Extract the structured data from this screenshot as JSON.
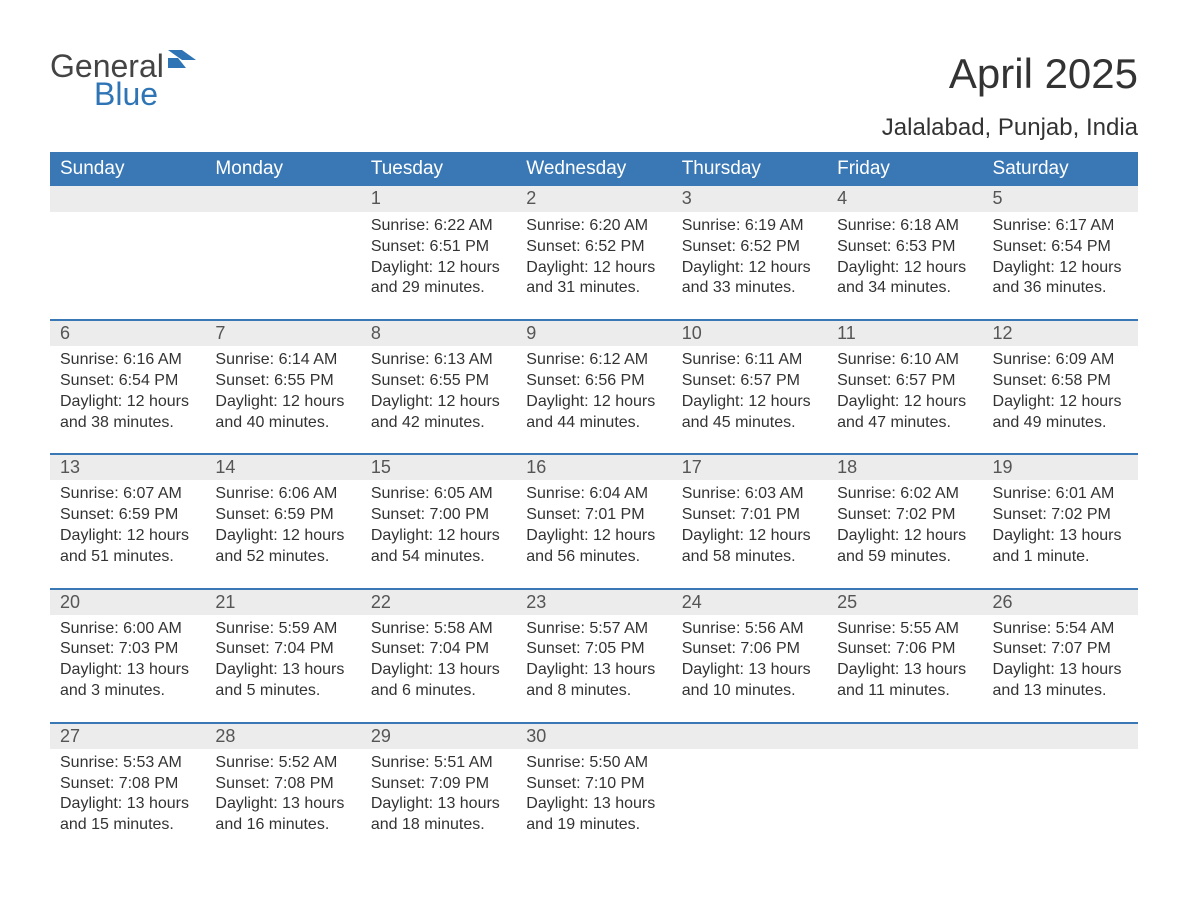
{
  "logo": {
    "word1": "General",
    "word2": "Blue",
    "color1": "#444444",
    "color2": "#2f75b5",
    "icon_color": "#2f75b5"
  },
  "title": "April 2025",
  "location": "Jalalabad, Punjab, India",
  "header_bg": "#3a78b5",
  "daynum_bg": "#ececec",
  "border_color": "#3a78b5",
  "weekdays": [
    "Sunday",
    "Monday",
    "Tuesday",
    "Wednesday",
    "Thursday",
    "Friday",
    "Saturday"
  ],
  "weeks": [
    {
      "days": [
        {
          "n": ""
        },
        {
          "n": ""
        },
        {
          "n": "1",
          "sr": "Sunrise: 6:22 AM",
          "ss": "Sunset: 6:51 PM",
          "d1": "Daylight: 12 hours",
          "d2": "and 29 minutes."
        },
        {
          "n": "2",
          "sr": "Sunrise: 6:20 AM",
          "ss": "Sunset: 6:52 PM",
          "d1": "Daylight: 12 hours",
          "d2": "and 31 minutes."
        },
        {
          "n": "3",
          "sr": "Sunrise: 6:19 AM",
          "ss": "Sunset: 6:52 PM",
          "d1": "Daylight: 12 hours",
          "d2": "and 33 minutes."
        },
        {
          "n": "4",
          "sr": "Sunrise: 6:18 AM",
          "ss": "Sunset: 6:53 PM",
          "d1": "Daylight: 12 hours",
          "d2": "and 34 minutes."
        },
        {
          "n": "5",
          "sr": "Sunrise: 6:17 AM",
          "ss": "Sunset: 6:54 PM",
          "d1": "Daylight: 12 hours",
          "d2": "and 36 minutes."
        }
      ]
    },
    {
      "days": [
        {
          "n": "6",
          "sr": "Sunrise: 6:16 AM",
          "ss": "Sunset: 6:54 PM",
          "d1": "Daylight: 12 hours",
          "d2": "and 38 minutes."
        },
        {
          "n": "7",
          "sr": "Sunrise: 6:14 AM",
          "ss": "Sunset: 6:55 PM",
          "d1": "Daylight: 12 hours",
          "d2": "and 40 minutes."
        },
        {
          "n": "8",
          "sr": "Sunrise: 6:13 AM",
          "ss": "Sunset: 6:55 PM",
          "d1": "Daylight: 12 hours",
          "d2": "and 42 minutes."
        },
        {
          "n": "9",
          "sr": "Sunrise: 6:12 AM",
          "ss": "Sunset: 6:56 PM",
          "d1": "Daylight: 12 hours",
          "d2": "and 44 minutes."
        },
        {
          "n": "10",
          "sr": "Sunrise: 6:11 AM",
          "ss": "Sunset: 6:57 PM",
          "d1": "Daylight: 12 hours",
          "d2": "and 45 minutes."
        },
        {
          "n": "11",
          "sr": "Sunrise: 6:10 AM",
          "ss": "Sunset: 6:57 PM",
          "d1": "Daylight: 12 hours",
          "d2": "and 47 minutes."
        },
        {
          "n": "12",
          "sr": "Sunrise: 6:09 AM",
          "ss": "Sunset: 6:58 PM",
          "d1": "Daylight: 12 hours",
          "d2": "and 49 minutes."
        }
      ]
    },
    {
      "days": [
        {
          "n": "13",
          "sr": "Sunrise: 6:07 AM",
          "ss": "Sunset: 6:59 PM",
          "d1": "Daylight: 12 hours",
          "d2": "and 51 minutes."
        },
        {
          "n": "14",
          "sr": "Sunrise: 6:06 AM",
          "ss": "Sunset: 6:59 PM",
          "d1": "Daylight: 12 hours",
          "d2": "and 52 minutes."
        },
        {
          "n": "15",
          "sr": "Sunrise: 6:05 AM",
          "ss": "Sunset: 7:00 PM",
          "d1": "Daylight: 12 hours",
          "d2": "and 54 minutes."
        },
        {
          "n": "16",
          "sr": "Sunrise: 6:04 AM",
          "ss": "Sunset: 7:01 PM",
          "d1": "Daylight: 12 hours",
          "d2": "and 56 minutes."
        },
        {
          "n": "17",
          "sr": "Sunrise: 6:03 AM",
          "ss": "Sunset: 7:01 PM",
          "d1": "Daylight: 12 hours",
          "d2": "and 58 minutes."
        },
        {
          "n": "18",
          "sr": "Sunrise: 6:02 AM",
          "ss": "Sunset: 7:02 PM",
          "d1": "Daylight: 12 hours",
          "d2": "and 59 minutes."
        },
        {
          "n": "19",
          "sr": "Sunrise: 6:01 AM",
          "ss": "Sunset: 7:02 PM",
          "d1": "Daylight: 13 hours",
          "d2": "and 1 minute."
        }
      ]
    },
    {
      "days": [
        {
          "n": "20",
          "sr": "Sunrise: 6:00 AM",
          "ss": "Sunset: 7:03 PM",
          "d1": "Daylight: 13 hours",
          "d2": "and 3 minutes."
        },
        {
          "n": "21",
          "sr": "Sunrise: 5:59 AM",
          "ss": "Sunset: 7:04 PM",
          "d1": "Daylight: 13 hours",
          "d2": "and 5 minutes."
        },
        {
          "n": "22",
          "sr": "Sunrise: 5:58 AM",
          "ss": "Sunset: 7:04 PM",
          "d1": "Daylight: 13 hours",
          "d2": "and 6 minutes."
        },
        {
          "n": "23",
          "sr": "Sunrise: 5:57 AM",
          "ss": "Sunset: 7:05 PM",
          "d1": "Daylight: 13 hours",
          "d2": "and 8 minutes."
        },
        {
          "n": "24",
          "sr": "Sunrise: 5:56 AM",
          "ss": "Sunset: 7:06 PM",
          "d1": "Daylight: 13 hours",
          "d2": "and 10 minutes."
        },
        {
          "n": "25",
          "sr": "Sunrise: 5:55 AM",
          "ss": "Sunset: 7:06 PM",
          "d1": "Daylight: 13 hours",
          "d2": "and 11 minutes."
        },
        {
          "n": "26",
          "sr": "Sunrise: 5:54 AM",
          "ss": "Sunset: 7:07 PM",
          "d1": "Daylight: 13 hours",
          "d2": "and 13 minutes."
        }
      ]
    },
    {
      "days": [
        {
          "n": "27",
          "sr": "Sunrise: 5:53 AM",
          "ss": "Sunset: 7:08 PM",
          "d1": "Daylight: 13 hours",
          "d2": "and 15 minutes."
        },
        {
          "n": "28",
          "sr": "Sunrise: 5:52 AM",
          "ss": "Sunset: 7:08 PM",
          "d1": "Daylight: 13 hours",
          "d2": "and 16 minutes."
        },
        {
          "n": "29",
          "sr": "Sunrise: 5:51 AM",
          "ss": "Sunset: 7:09 PM",
          "d1": "Daylight: 13 hours",
          "d2": "and 18 minutes."
        },
        {
          "n": "30",
          "sr": "Sunrise: 5:50 AM",
          "ss": "Sunset: 7:10 PM",
          "d1": "Daylight: 13 hours",
          "d2": "and 19 minutes."
        },
        {
          "n": ""
        },
        {
          "n": ""
        },
        {
          "n": ""
        }
      ]
    }
  ]
}
